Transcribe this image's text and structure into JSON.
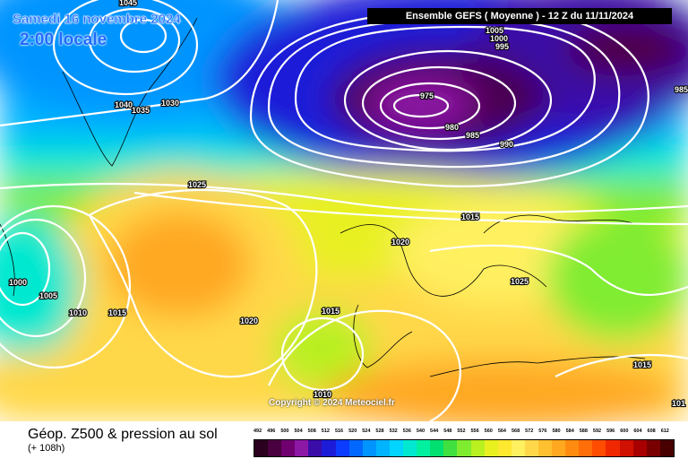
{
  "header": {
    "model_title": "Ensemble GEFS  ( Moyenne )  -  12 Z du 11/11/2024",
    "date": "Samedi 16 novembre 2024",
    "local_time": "2:00 locale"
  },
  "copyright": "Copyright © 2024 Meteociel.fr",
  "footer": {
    "parameter": "Géop. Z500 & pression au sol",
    "lead_time": "(+ 108h)"
  },
  "legend": {
    "values": [
      "492",
      "496",
      "500",
      "504",
      "508",
      "512",
      "516",
      "520",
      "524",
      "528",
      "532",
      "536",
      "540",
      "544",
      "548",
      "552",
      "556",
      "560",
      "564",
      "568",
      "572",
      "576",
      "580",
      "584",
      "588",
      "592",
      "596",
      "600",
      "604",
      "608",
      "612"
    ],
    "colors": [
      "#2a001e",
      "#4a0040",
      "#700070",
      "#8e18a6",
      "#3a0ca8",
      "#1c1cd8",
      "#0c3cff",
      "#0068ff",
      "#0094ff",
      "#00b4ff",
      "#00d4ff",
      "#00e8d0",
      "#00f0a0",
      "#00e070",
      "#40e040",
      "#80ec30",
      "#b8f020",
      "#e8f020",
      "#ffe830",
      "#fff060",
      "#ffd84a",
      "#ffc030",
      "#ffa820",
      "#ff8c10",
      "#ff6e08",
      "#ff4c00",
      "#f02800",
      "#d01000",
      "#a80000",
      "#780000",
      "#480000"
    ]
  },
  "isobar_labels": [
    {
      "id": "iso-1045",
      "text": "1045"
    },
    {
      "id": "iso-1040",
      "text": "1040"
    },
    {
      "id": "iso-1035",
      "text": "1035"
    },
    {
      "id": "iso-1030",
      "text": "1030"
    },
    {
      "id": "iso-1025-n",
      "text": "1025"
    },
    {
      "id": "iso-1005-top",
      "text": "1005"
    },
    {
      "id": "iso-1000-top",
      "text": "1000"
    },
    {
      "id": "iso-995-top",
      "text": "995"
    },
    {
      "id": "iso-975",
      "text": "975"
    },
    {
      "id": "iso-980",
      "text": "980"
    },
    {
      "id": "iso-985",
      "text": "985"
    },
    {
      "id": "iso-990",
      "text": "990"
    },
    {
      "id": "iso-985-e",
      "text": "985"
    },
    {
      "id": "iso-1015-c",
      "text": "1015"
    },
    {
      "id": "iso-1020-c",
      "text": "1020"
    },
    {
      "id": "iso-1025-e",
      "text": "1025"
    },
    {
      "id": "iso-1000-w",
      "text": "1000"
    },
    {
      "id": "iso-1005-w",
      "text": "1005"
    },
    {
      "id": "iso-1010-w",
      "text": "1010"
    },
    {
      "id": "iso-1015-w",
      "text": "1015"
    },
    {
      "id": "iso-1020-s",
      "text": "1020"
    },
    {
      "id": "iso-1015-s",
      "text": "1015"
    },
    {
      "id": "iso-1010-s",
      "text": "1010"
    },
    {
      "id": "iso-1015-se",
      "text": "1015"
    },
    {
      "id": "iso-1010-e",
      "text": "101"
    }
  ]
}
